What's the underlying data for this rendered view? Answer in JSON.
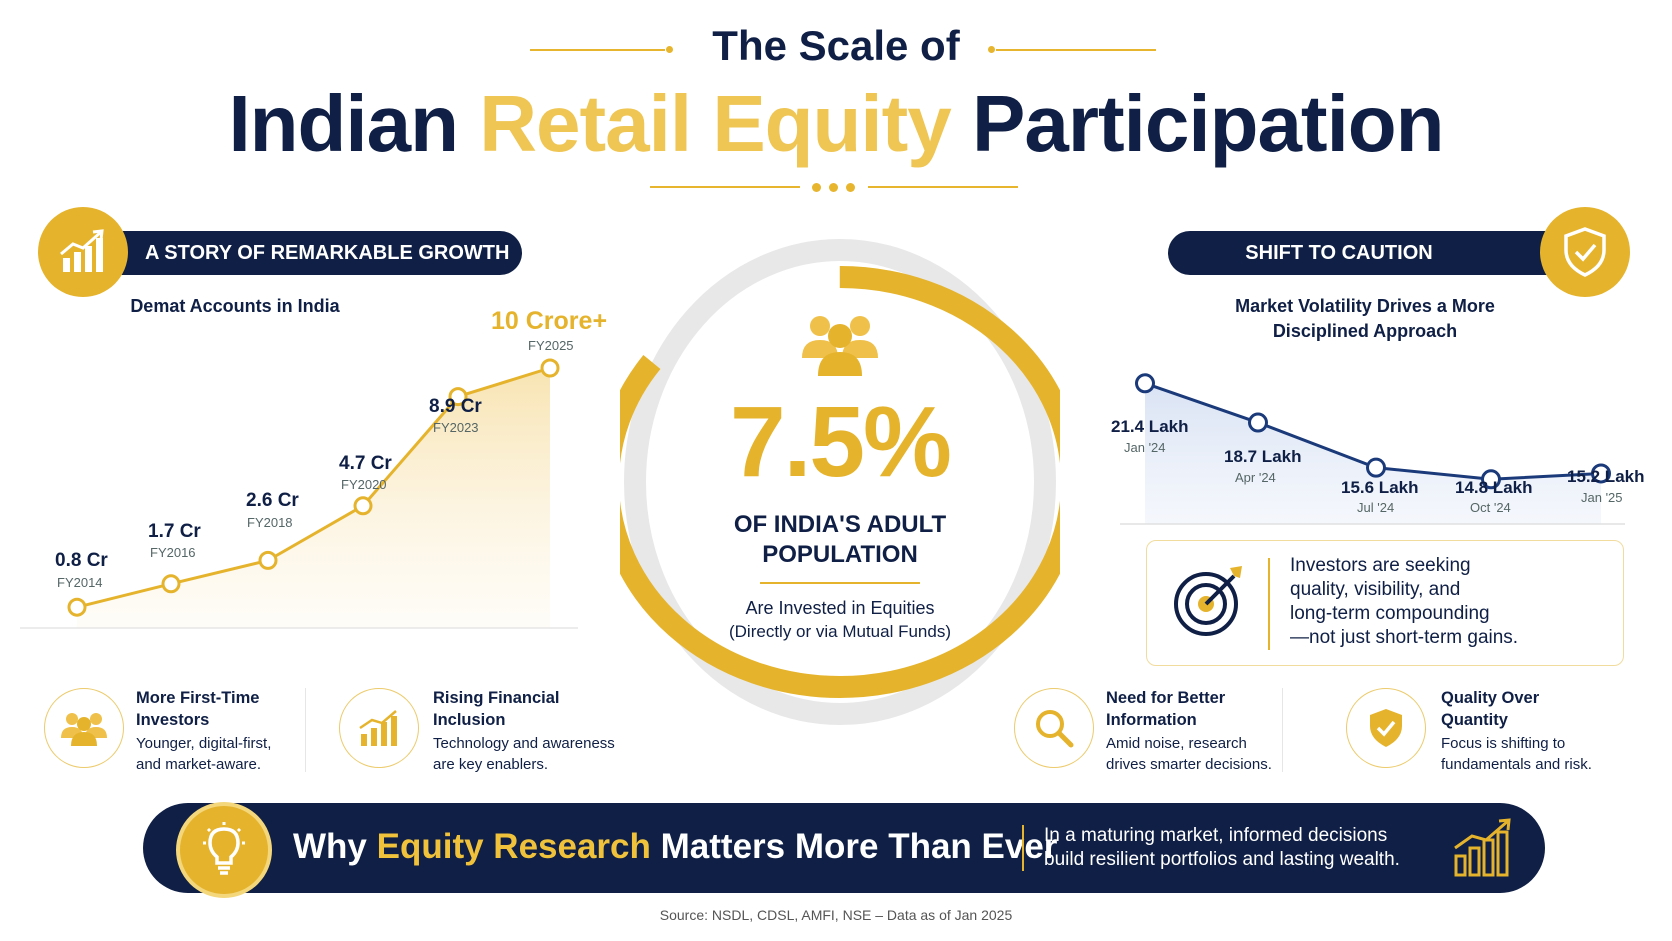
{
  "header": {
    "kicker": "The Scale of",
    "title_part1": "Indian",
    "title_highlight": "Retail Equity",
    "title_part2": "Participation"
  },
  "growth_section": {
    "pill_label": "A STORY OF REMARKABLE GROWTH",
    "badge_icon": "growth-chart-icon",
    "chart_title": "Demat Accounts in India"
  },
  "caution_section": {
    "pill_label": "SHIFT TO CAUTION",
    "badge_icon": "shield-check-icon",
    "chart_title_line1": "Market Volatility Drives a More",
    "chart_title_line2": "Disciplined Approach"
  },
  "chart_data": [
    {
      "type": "area",
      "title": "Demat Accounts in India",
      "categories": [
        "FY2014",
        "FY2016",
        "FY2018",
        "FY2020",
        "FY2023",
        "FY2025"
      ],
      "values": [
        0.8,
        1.7,
        2.6,
        4.7,
        8.9,
        10
      ],
      "value_labels": [
        "0.8 Cr",
        "1.7 Cr",
        "2.6 Cr",
        "4.7 Cr",
        "8.9 Cr",
        "10 Crore+"
      ],
      "unit": "Cr",
      "color": "#e5b32c"
    },
    {
      "type": "line",
      "title": "Market Volatility Drives a More Disciplined Approach",
      "categories": [
        "Jan '24",
        "Apr '24",
        "Jul '24",
        "Oct '24",
        "Jan '25"
      ],
      "values": [
        21.4,
        18.7,
        15.6,
        14.8,
        15.2
      ],
      "value_labels": [
        "21.4 Lakh",
        "18.7 Lakh",
        "15.6 Lakh",
        "14.8 Lakh",
        "15.2 Lakh"
      ],
      "unit": "Lakh",
      "color": "#1b3a7a"
    }
  ],
  "center_stat": {
    "value": 7.5,
    "value_label": "7.5%",
    "line1": "OF INDIA'S ADULT",
    "line2": "POPULATION",
    "sub1": "Are Invested in Equities",
    "sub2": "(Directly or via Mutual Funds)",
    "icon": "people-group-icon",
    "ring_color": "#e5b32c"
  },
  "insight": {
    "icon": "target-icon",
    "lines": [
      "Investors are seeking",
      "quality, visibility, and",
      "long-term compounding",
      "—not just short-term gains."
    ]
  },
  "features": [
    {
      "icon": "people-icon",
      "title1": "More First-Time",
      "title2": "Investors",
      "desc1": "Younger, digital-first,",
      "desc2": "and market-aware."
    },
    {
      "icon": "bar-growth-icon",
      "title1": "Rising Financial",
      "title2": "Inclusion",
      "desc1": "Technology and awareness",
      "desc2": "are key enablers."
    },
    {
      "icon": "magnifier-icon",
      "title1": "Need for Better",
      "title2": "Information",
      "desc1": "Amid noise, research",
      "desc2": "drives smarter decisions."
    },
    {
      "icon": "shield-check-icon",
      "title1": "Quality Over",
      "title2": "Quantity",
      "desc1": "Focus is shifting to",
      "desc2": "fundamentals and risk."
    }
  ],
  "banner": {
    "icon": "lightbulb-icon",
    "title_part1": "Why",
    "title_highlight": "Equity Research",
    "title_part2": "Matters More Than Ever",
    "text1": "In a maturing market, informed decisions",
    "text2": "build resilient portfolios and lasting wealth.",
    "end_icon": "bar-growth-icon"
  },
  "source": "Source: NSDL, CDSL, AMFI, NSE – Data as of Jan 2025"
}
